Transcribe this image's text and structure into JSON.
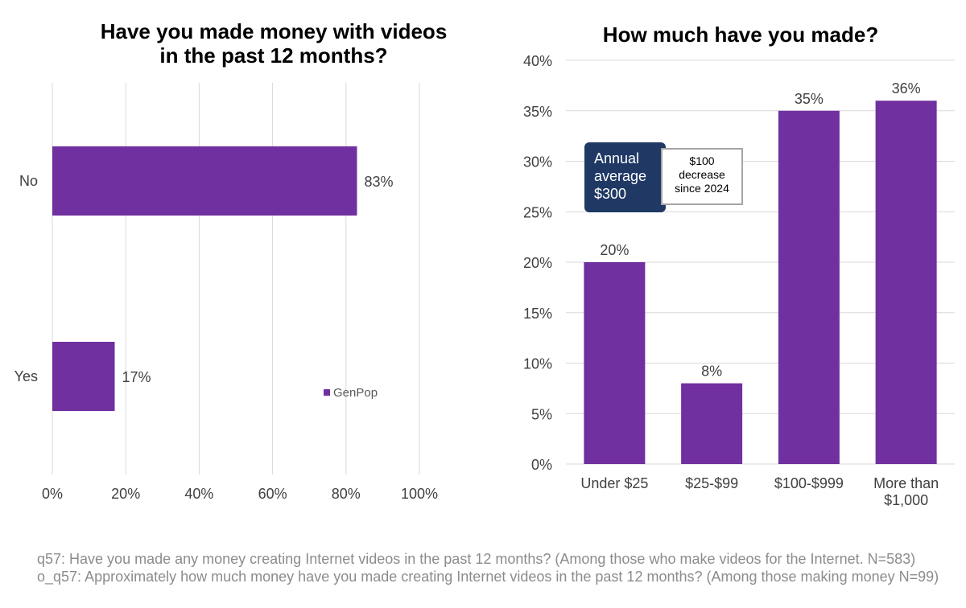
{
  "chart_data": [
    {
      "type": "bar",
      "orientation": "horizontal",
      "title_lines": [
        "Have you made money with videos",
        "in the past 12 months?"
      ],
      "categories": [
        "No",
        "Yes"
      ],
      "series": [
        {
          "name": "GenPop",
          "values": [
            83,
            17
          ]
        }
      ],
      "data_labels": [
        "83%",
        "17%"
      ],
      "xlim": [
        0,
        100
      ],
      "x_ticks": [
        "0%",
        "20%",
        "40%",
        "60%",
        "80%",
        "100%"
      ],
      "grid": true,
      "legend": "bottom-right",
      "bar_color": "#7030a0"
    },
    {
      "type": "bar",
      "orientation": "vertical",
      "title": "How much have you made?",
      "categories": [
        [
          "Under $25"
        ],
        [
          "$25-$99"
        ],
        [
          "$100-$999"
        ],
        [
          "More than",
          "$1,000"
        ]
      ],
      "values": [
        20,
        8,
        35,
        36
      ],
      "data_labels": [
        "20%",
        "8%",
        "35%",
        "36%"
      ],
      "ylim": [
        0,
        40
      ],
      "y_ticks": [
        "0%",
        "5%",
        "10%",
        "15%",
        "20%",
        "25%",
        "30%",
        "35%",
        "40%"
      ],
      "grid": true,
      "bar_color": "#7030a0",
      "annotations": {
        "average": [
          "Annual",
          "average",
          "$300"
        ],
        "change": [
          "$100",
          "decrease",
          "since 2024"
        ]
      }
    }
  ],
  "colors": {
    "bar": "#7030a0",
    "callout_dark": "#1f3864",
    "grid": "#d9d9d9",
    "footnote": "#8c8c8c"
  },
  "footnote": "q57: Have you made any money creating Internet videos in the past 12 months? (Among those who make videos for the Internet. N=583) o_q57: Approximately how much money have you made creating Internet videos in the past 12 months? (Among those making money N=99)"
}
